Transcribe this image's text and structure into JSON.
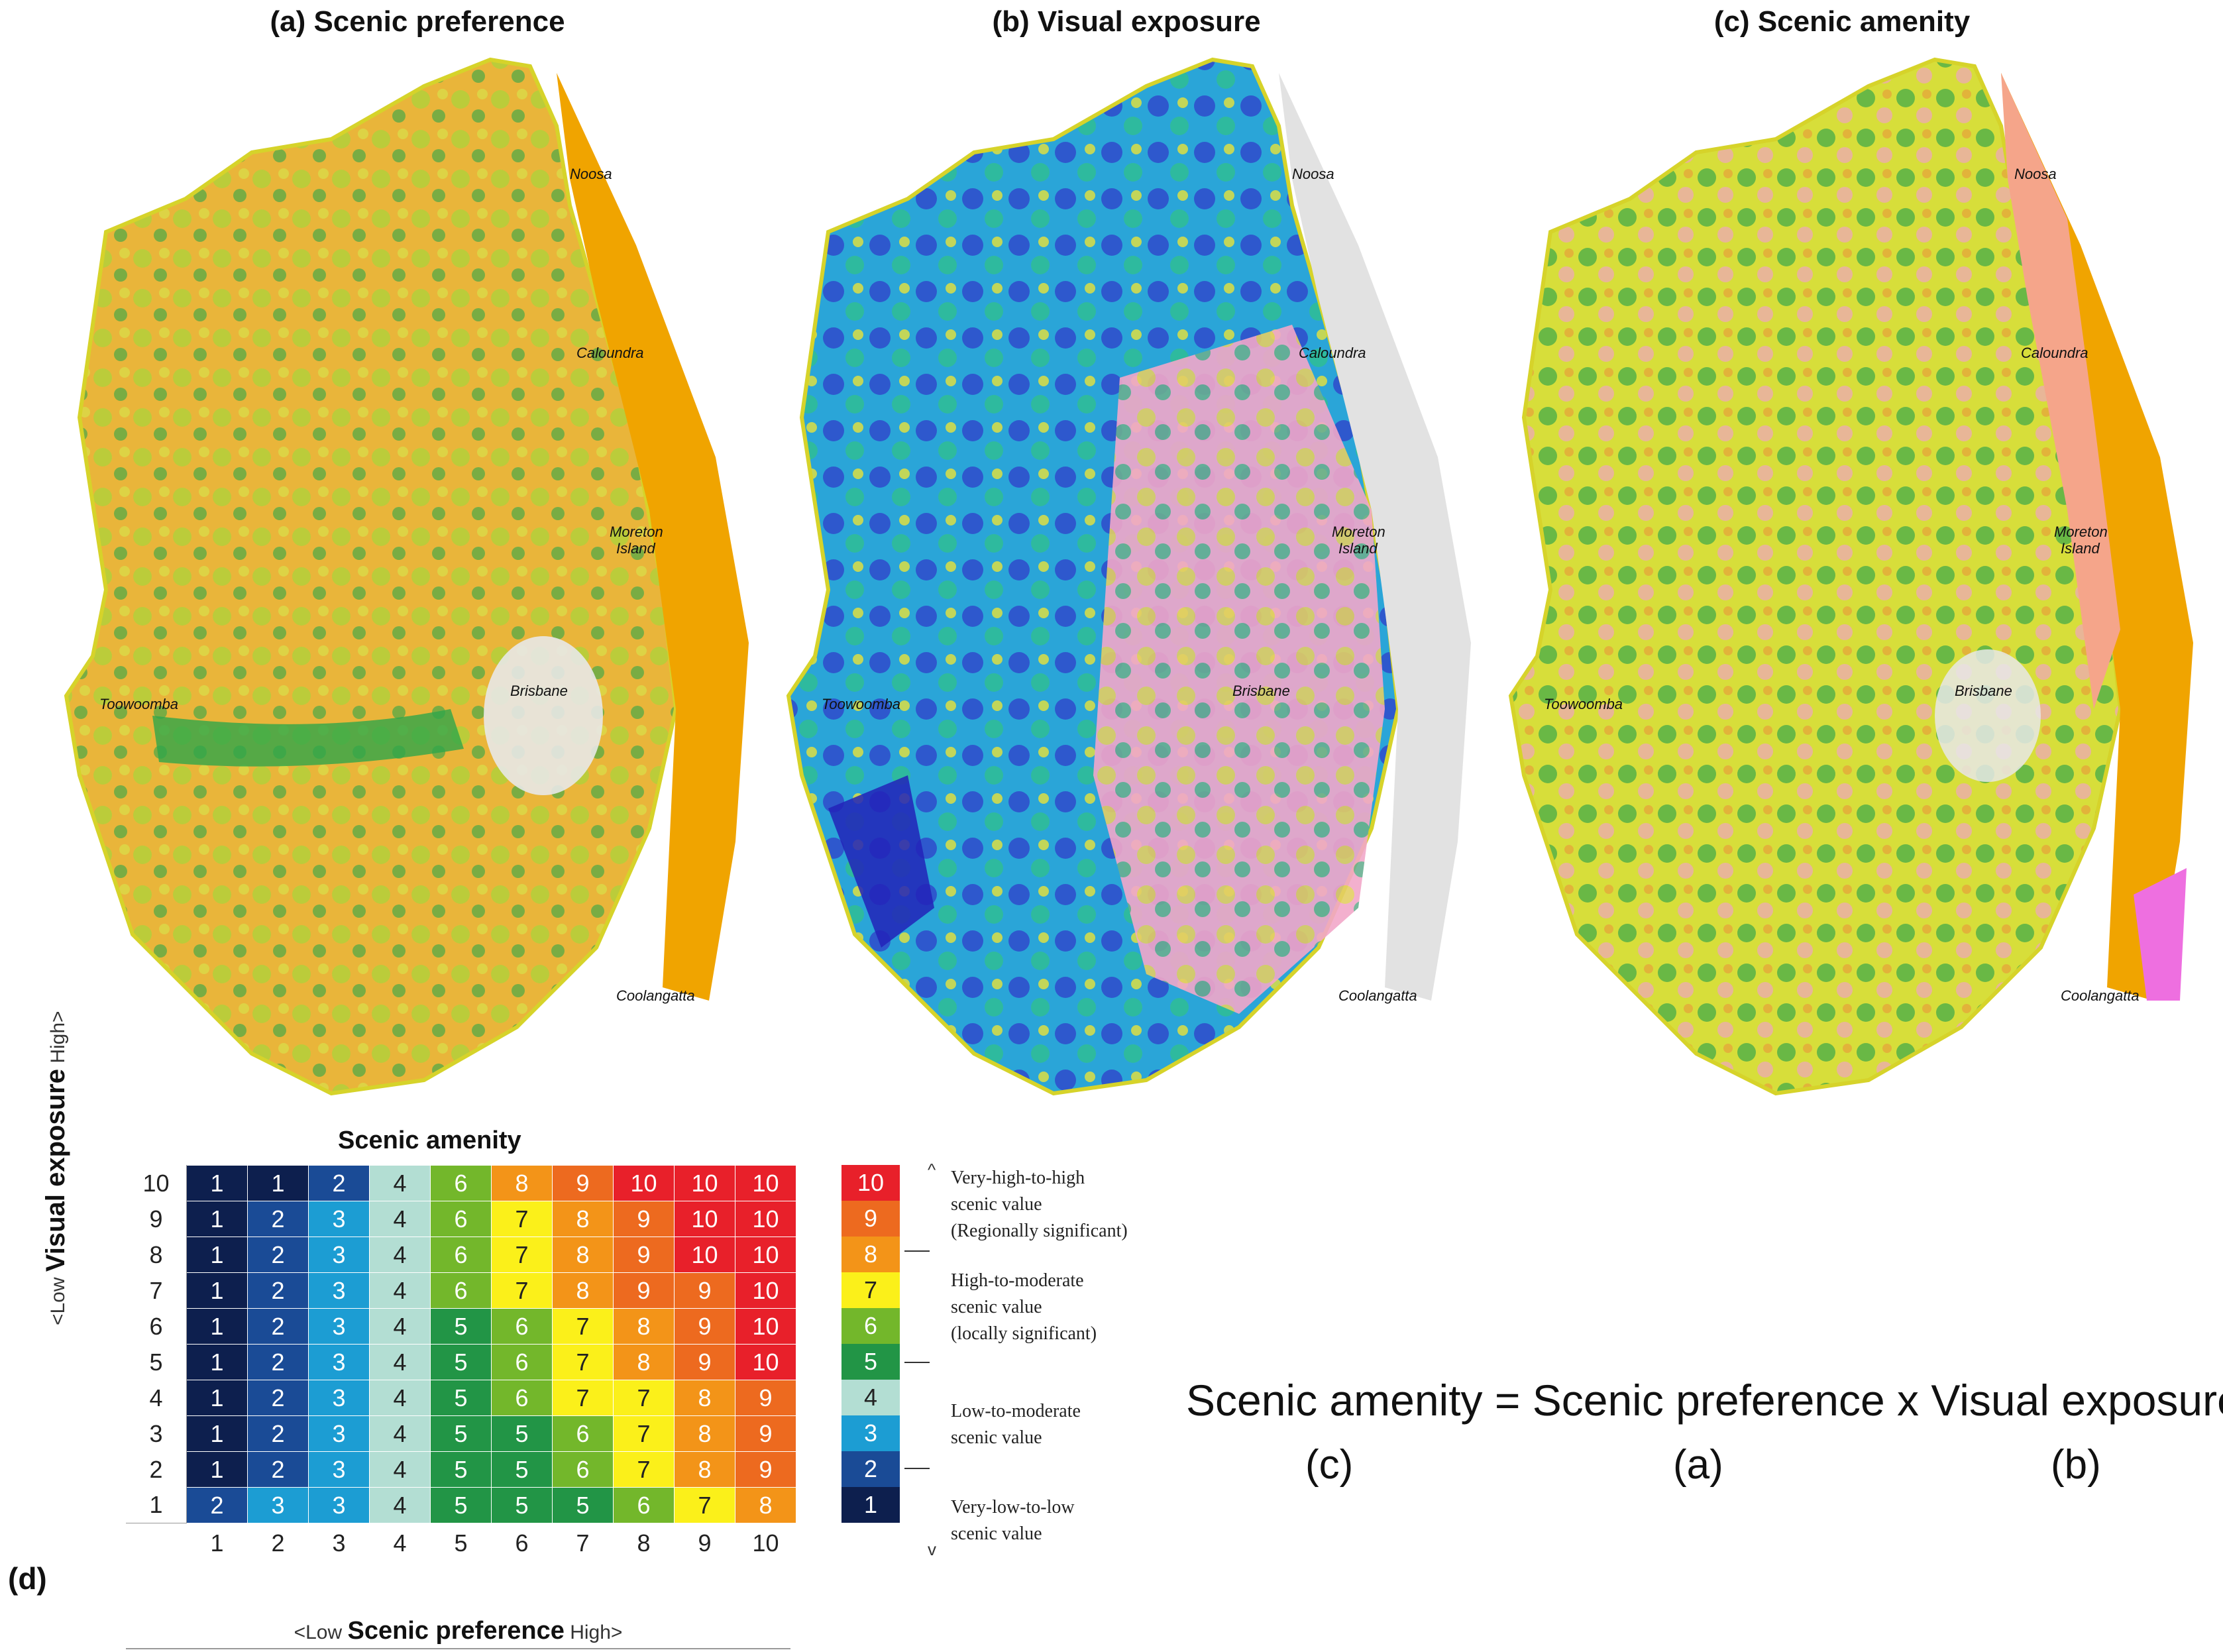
{
  "panels": [
    {
      "title": "(a) Scenic preference"
    },
    {
      "title": "(b) Visual exposure"
    },
    {
      "title": "(c) Scenic amenity"
    }
  ],
  "place_labels": {
    "noosa": "Noosa",
    "caloundra": "Caloundra",
    "moreton": "Moreton",
    "island": "Island",
    "brisbane": "Brisbane",
    "toowoomba": "Toowoomba",
    "coolangatta": "Coolangatta"
  },
  "matrix": {
    "title": "Scenic amenity",
    "y_axis": {
      "low": "<Low",
      "name": "Visual exposure",
      "high": "High>"
    },
    "x_axis": {
      "low": "<Low",
      "name": "Scenic preference",
      "high": "High>"
    },
    "row_labels": [
      "10",
      "9",
      "8",
      "7",
      "6",
      "5",
      "4",
      "3",
      "2",
      "1"
    ],
    "col_labels": [
      "1",
      "2",
      "3",
      "4",
      "5",
      "6",
      "7",
      "8",
      "9",
      "10"
    ],
    "rows": [
      [
        "1",
        "1",
        "2",
        "4",
        "6",
        "8",
        "9",
        "10",
        "10",
        "10"
      ],
      [
        "1",
        "2",
        "3",
        "4",
        "6",
        "7",
        "8",
        "9",
        "10",
        "10"
      ],
      [
        "1",
        "2",
        "3",
        "4",
        "6",
        "7",
        "8",
        "9",
        "10",
        "10"
      ],
      [
        "1",
        "2",
        "3",
        "4",
        "6",
        "7",
        "8",
        "9",
        "9",
        "10"
      ],
      [
        "1",
        "2",
        "3",
        "4",
        "5",
        "6",
        "7",
        "8",
        "9",
        "10"
      ],
      [
        "1",
        "2",
        "3",
        "4",
        "5",
        "6",
        "7",
        "8",
        "9",
        "10"
      ],
      [
        "1",
        "2",
        "3",
        "4",
        "5",
        "6",
        "7",
        "7",
        "8",
        "9"
      ],
      [
        "1",
        "2",
        "3",
        "4",
        "5",
        "5",
        "6",
        "7",
        "8",
        "9"
      ],
      [
        "1",
        "2",
        "3",
        "4",
        "5",
        "5",
        "6",
        "7",
        "8",
        "9"
      ],
      [
        "2",
        "3",
        "3",
        "4",
        "5",
        "5",
        "5",
        "6",
        "7",
        "8"
      ]
    ],
    "panel_letter": "(d)"
  },
  "legend": {
    "classes": [
      "10",
      "9",
      "8",
      "7",
      "6",
      "5",
      "4",
      "3",
      "2",
      "1"
    ],
    "colors": {
      "10": "#e8202a",
      "9": "#ed6a1f",
      "8": "#f39418",
      "7": "#fbf01a",
      "6": "#73b72b",
      "5": "#229546",
      "4": "#b3ded3",
      "3": "#1c9dd3",
      "2": "#1a4b96",
      "1": "#0d1f4e"
    },
    "up_arrow": "^",
    "down_arrow": "v",
    "groups": [
      [
        "Very-high-to-high",
        "scenic value",
        "(Regionally significant)"
      ],
      [
        "High-to-moderate",
        "scenic value",
        "(locally significant)"
      ],
      [
        "Low-to-moderate",
        "scenic value"
      ],
      [
        "Very-low-to-low",
        "scenic value"
      ]
    ]
  },
  "equation": {
    "text": "Scenic amenity = Scenic preference x Visual exposure",
    "sub_c": "(c)",
    "sub_a": "(a)",
    "sub_b": "(b)"
  }
}
